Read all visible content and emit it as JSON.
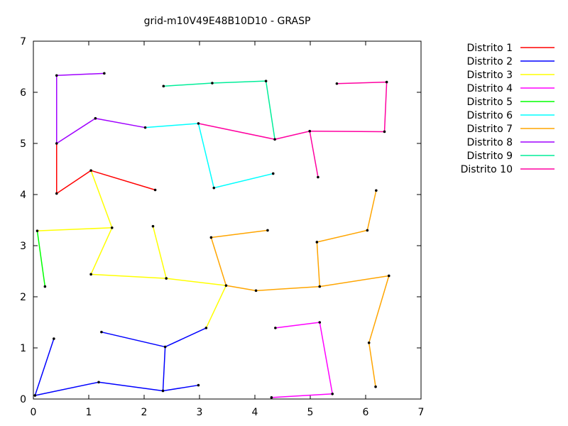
{
  "chart_data": {
    "type": "line",
    "title": "grid-m10V49E48B10D10 -  GRASP",
    "xlim": [
      0,
      7
    ],
    "ylim": [
      0,
      7
    ],
    "xticks": [
      "0",
      "1",
      "2",
      "3",
      "4",
      "5",
      "6",
      "7"
    ],
    "yticks": [
      "0",
      "1",
      "2",
      "3",
      "4",
      "5",
      "6",
      "7"
    ],
    "grid": false,
    "legend_position": "outside-top-right",
    "series": [
      {
        "name": "Distrito 1",
        "color": "#ff0000",
        "segments": [
          [
            [
              0.42,
              4.02
            ],
            [
              0.42,
              5.0
            ]
          ],
          [
            [
              0.42,
              4.02
            ],
            [
              1.04,
              4.47
            ]
          ],
          [
            [
              1.04,
              4.47
            ],
            [
              2.2,
              4.09
            ]
          ]
        ]
      },
      {
        "name": "Distrito 2",
        "color": "#0000ff",
        "segments": [
          [
            [
              0.03,
              0.07
            ],
            [
              0.37,
              1.18
            ]
          ],
          [
            [
              0.03,
              0.07
            ],
            [
              1.18,
              0.33
            ]
          ],
          [
            [
              1.18,
              0.33
            ],
            [
              2.34,
              0.16
            ]
          ],
          [
            [
              2.34,
              0.16
            ],
            [
              2.98,
              0.27
            ]
          ],
          [
            [
              2.34,
              0.16
            ],
            [
              2.38,
              1.02
            ]
          ],
          [
            [
              2.38,
              1.02
            ],
            [
              1.23,
              1.31
            ]
          ],
          [
            [
              2.38,
              1.02
            ],
            [
              3.12,
              1.39
            ]
          ]
        ]
      },
      {
        "name": "Distrito 3",
        "color": "#ffff00",
        "segments": [
          [
            [
              0.07,
              3.29
            ],
            [
              1.42,
              3.35
            ]
          ],
          [
            [
              1.42,
              3.35
            ],
            [
              1.04,
              4.47
            ]
          ],
          [
            [
              1.42,
              3.35
            ],
            [
              1.04,
              2.44
            ]
          ],
          [
            [
              1.04,
              2.44
            ],
            [
              2.4,
              2.36
            ]
          ],
          [
            [
              2.4,
              2.36
            ],
            [
              2.16,
              3.38
            ]
          ],
          [
            [
              2.4,
              2.36
            ],
            [
              3.48,
              2.22
            ]
          ],
          [
            [
              3.48,
              2.22
            ],
            [
              3.12,
              1.39
            ]
          ]
        ]
      },
      {
        "name": "Distrito 4",
        "color": "#ff00ff",
        "segments": [
          [
            [
              4.3,
              0.03
            ],
            [
              5.4,
              0.1
            ]
          ],
          [
            [
              5.4,
              0.1
            ],
            [
              5.17,
              1.5
            ]
          ],
          [
            [
              5.17,
              1.5
            ],
            [
              4.37,
              1.39
            ]
          ]
        ]
      },
      {
        "name": "Distrito 5",
        "color": "#00ff00",
        "segments": [
          [
            [
              0.07,
              3.29
            ],
            [
              0.21,
              2.2
            ]
          ]
        ]
      },
      {
        "name": "Distrito 6",
        "color": "#00ffff",
        "segments": [
          [
            [
              2.02,
              5.31
            ],
            [
              2.98,
              5.39
            ]
          ],
          [
            [
              2.98,
              5.39
            ],
            [
              3.26,
              4.13
            ]
          ],
          [
            [
              3.26,
              4.13
            ],
            [
              4.33,
              4.41
            ]
          ]
        ]
      },
      {
        "name": "Distrito 7",
        "color": "#ffa500",
        "segments": [
          [
            [
              3.48,
              2.22
            ],
            [
              3.21,
              3.16
            ]
          ],
          [
            [
              3.21,
              3.16
            ],
            [
              4.23,
              3.3
            ]
          ],
          [
            [
              3.48,
              2.22
            ],
            [
              4.02,
              2.12
            ]
          ],
          [
            [
              4.02,
              2.12
            ],
            [
              5.17,
              2.2
            ]
          ],
          [
            [
              5.17,
              2.2
            ],
            [
              5.12,
              3.07
            ]
          ],
          [
            [
              5.12,
              3.07
            ],
            [
              6.03,
              3.3
            ]
          ],
          [
            [
              6.03,
              3.3
            ],
            [
              6.19,
              4.08
            ]
          ],
          [
            [
              5.17,
              2.2
            ],
            [
              6.42,
              2.41
            ]
          ],
          [
            [
              6.42,
              2.41
            ],
            [
              6.06,
              1.1
            ]
          ],
          [
            [
              6.06,
              1.1
            ],
            [
              6.18,
              0.24
            ]
          ]
        ]
      },
      {
        "name": "Distrito 8",
        "color": "#a000ff",
        "segments": [
          [
            [
              0.42,
              5.0
            ],
            [
              0.42,
              6.33
            ]
          ],
          [
            [
              0.42,
              6.33
            ],
            [
              1.28,
              6.37
            ]
          ],
          [
            [
              0.42,
              5.0
            ],
            [
              1.12,
              5.49
            ]
          ],
          [
            [
              1.12,
              5.49
            ],
            [
              2.02,
              5.31
            ]
          ]
        ]
      },
      {
        "name": "Distrito 9",
        "color": "#00ee99",
        "segments": [
          [
            [
              2.35,
              6.12
            ],
            [
              3.23,
              6.18
            ]
          ],
          [
            [
              3.23,
              6.18
            ],
            [
              4.2,
              6.22
            ]
          ],
          [
            [
              4.2,
              6.22
            ],
            [
              4.36,
              5.08
            ]
          ]
        ]
      },
      {
        "name": "Distrito 10",
        "color": "#ff00a0",
        "segments": [
          [
            [
              2.98,
              5.39
            ],
            [
              4.36,
              5.08
            ]
          ],
          [
            [
              4.36,
              5.08
            ],
            [
              4.99,
              5.24
            ]
          ],
          [
            [
              4.99,
              5.24
            ],
            [
              5.14,
              4.34
            ]
          ],
          [
            [
              4.99,
              5.24
            ],
            [
              6.34,
              5.23
            ]
          ],
          [
            [
              6.34,
              5.23
            ],
            [
              6.38,
              6.2
            ]
          ],
          [
            [
              6.38,
              6.2
            ],
            [
              5.48,
              6.17
            ]
          ]
        ]
      }
    ]
  }
}
